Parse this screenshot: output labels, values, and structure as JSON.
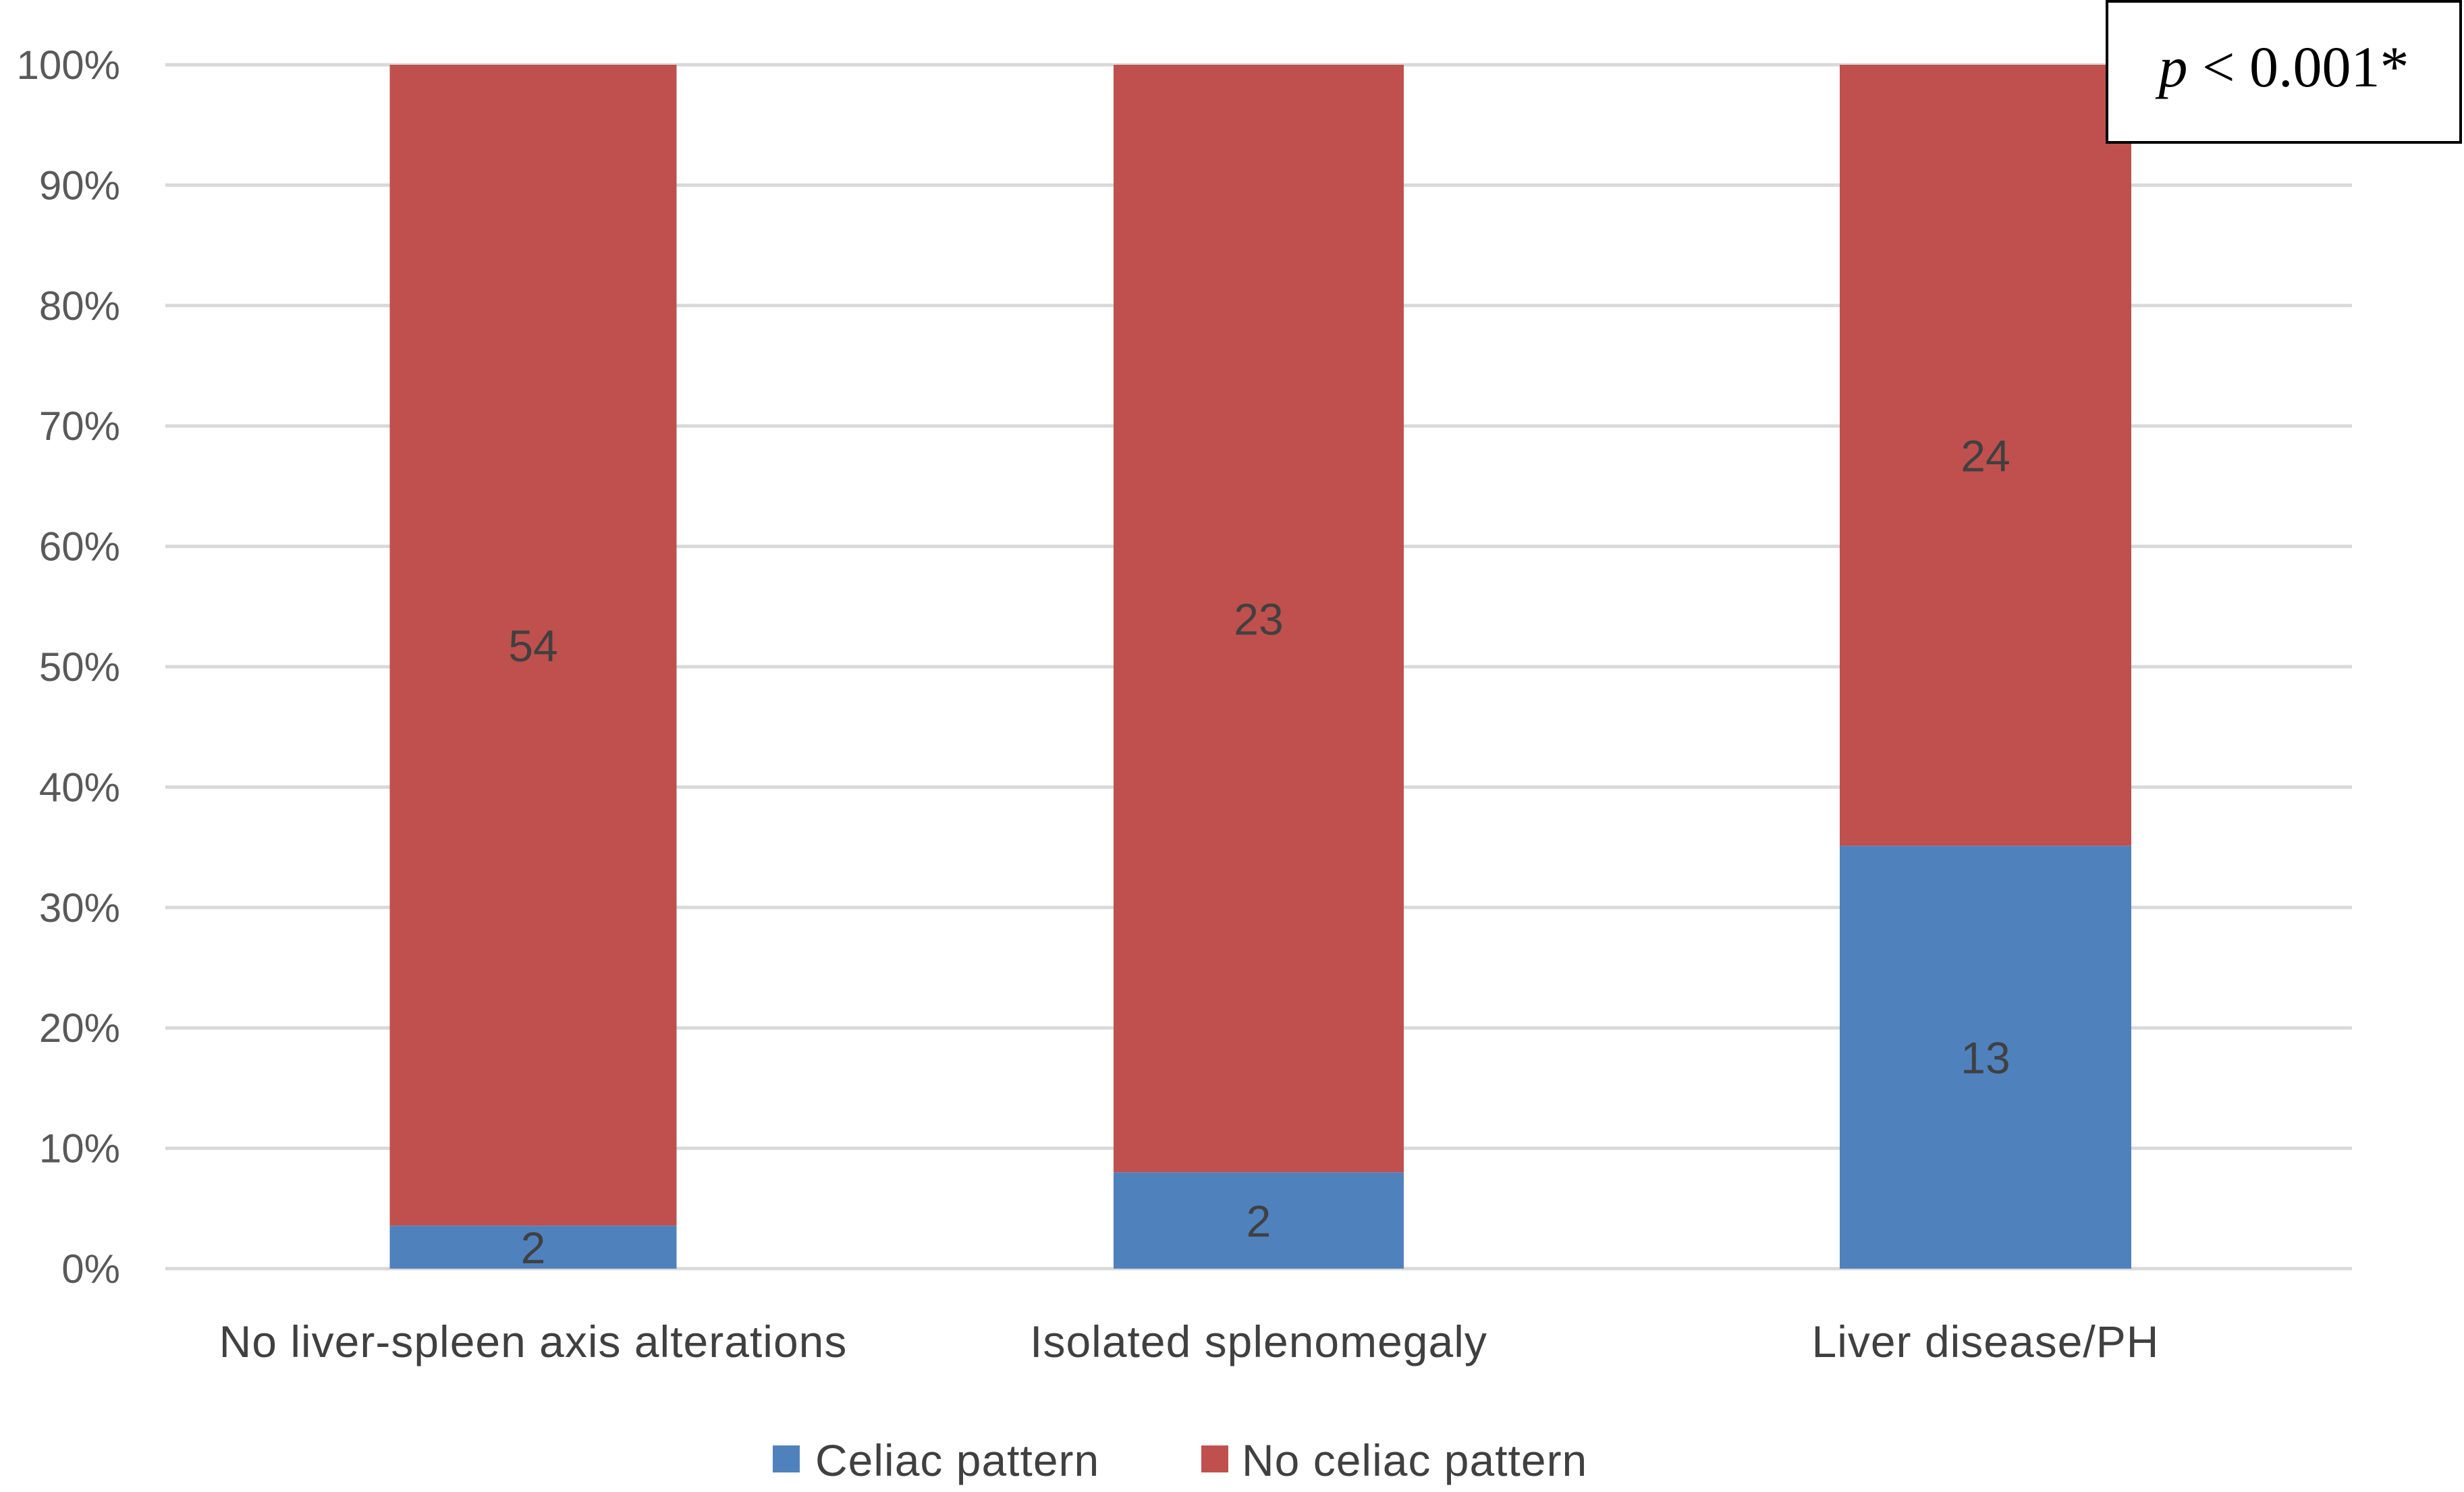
{
  "chart_data": {
    "type": "bar",
    "stacked": true,
    "normalized_percent": true,
    "categories": [
      "No liver-spleen axis alterations",
      "Isolated splenomegaly",
      "Liver disease/PH"
    ],
    "series": [
      {
        "name": "Celiac pattern",
        "values": [
          2,
          2,
          13
        ],
        "color": "#4F81BD"
      },
      {
        "name": "No celiac pattern",
        "values": [
          54,
          23,
          24
        ],
        "color": "#C0504D"
      }
    ],
    "y_ticks": [
      "0%",
      "10%",
      "20%",
      "30%",
      "40%",
      "50%",
      "60%",
      "70%",
      "80%",
      "90%",
      "100%"
    ],
    "ylim": [
      0,
      100
    ],
    "grid": true,
    "legend_position": "bottom",
    "annotation": {
      "italic": "p",
      "rest": " < 0.001*"
    },
    "title": "",
    "xlabel": "",
    "ylabel": ""
  },
  "colors": {
    "grid": "#D9D9D9",
    "tick_text": "#595959",
    "label_text": "#404040"
  }
}
